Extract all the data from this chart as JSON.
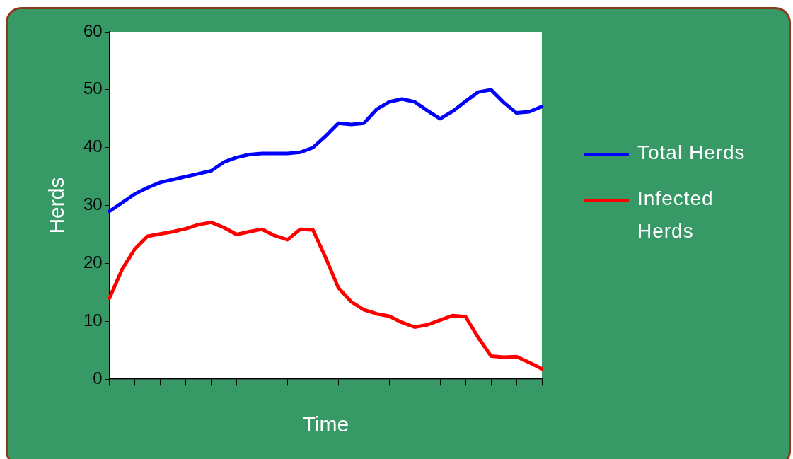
{
  "chart_data": {
    "type": "line",
    "xlabel": "Time",
    "ylabel": "Herds",
    "categories": [
      null,
      null,
      null,
      null,
      null,
      null,
      null,
      null,
      null,
      null,
      null,
      null,
      null,
      null,
      null,
      null,
      null,
      null,
      null,
      null,
      null,
      null,
      null,
      null,
      null,
      null,
      null,
      null,
      null,
      null,
      null,
      null,
      null,
      null,
      null
    ],
    "ylim": [
      0,
      60
    ],
    "yticks": [
      0,
      10,
      20,
      30,
      40,
      50,
      60
    ],
    "grid": false,
    "legend": "right",
    "marker": "none",
    "line_style": "solid",
    "series": [
      {
        "name": "Total Herds",
        "color": "#0000ff",
        "values": [
          29,
          30.5,
          32,
          33.1,
          34,
          34.5,
          35,
          35.5,
          36,
          37.5,
          38.3,
          38.8,
          39,
          39,
          39,
          39.2,
          40,
          42,
          44.2,
          44,
          44.2,
          46.6,
          47.9,
          48.4,
          47.9,
          46.4,
          45,
          46.3,
          48,
          49.6,
          50,
          47.8,
          46,
          46.2,
          47.1
        ]
      },
      {
        "name": "Infected Herds",
        "color": "#ff0000",
        "values": [
          14,
          19,
          22.5,
          24.7,
          25.1,
          25.5,
          26,
          26.7,
          27.1,
          26.2,
          25,
          25.5,
          25.9,
          24.8,
          24.1,
          25.9,
          25.8,
          21,
          15.8,
          13.4,
          12,
          11.3,
          10.9,
          9.8,
          9,
          9.4,
          10.2,
          11,
          10.8,
          7.2,
          4,
          3.8,
          3.9,
          2.9,
          1.8
        ]
      }
    ]
  }
}
